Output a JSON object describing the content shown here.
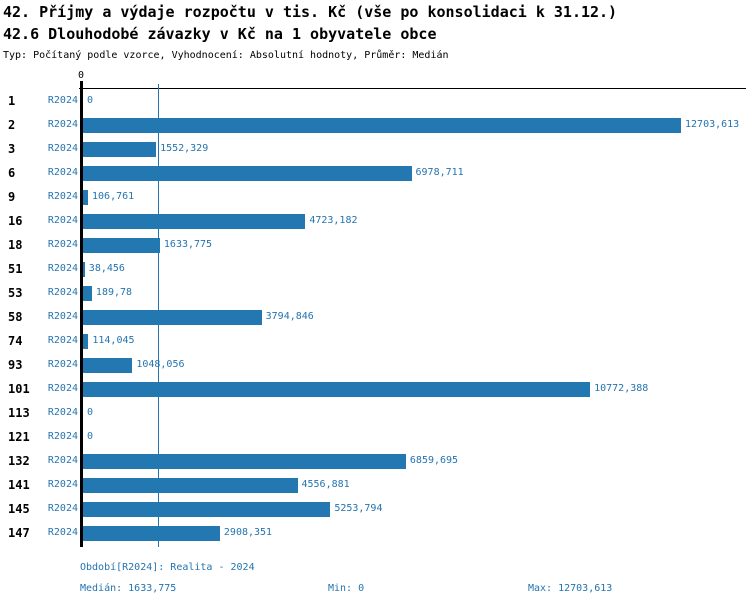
{
  "header": {
    "title": "42. Příjmy a výdaje rozpočtu v tis. Kč (vše po konsolidaci k 31.12.)",
    "subtitle": "42.6 Dlouhodobé závazky v Kč na 1 obyvatele obce",
    "meta": "Typ: Počítaný podle vzorce, Vyhodnocení: Absolutní hodnoty, Průměr: Medián"
  },
  "chart_data": {
    "type": "bar",
    "orientation": "horizontal",
    "title": "42. Příjmy a výdaje rozpočtu v tis. Kč (vše po konsolidaci k 31.12.)",
    "subtitle": "42.6 Dlouhodobé závazky v Kč na 1 obyvatele obce",
    "series_label": "R2024",
    "categories": [
      "1",
      "2",
      "3",
      "6",
      "9",
      "16",
      "18",
      "51",
      "53",
      "58",
      "74",
      "93",
      "101",
      "113",
      "121",
      "132",
      "141",
      "145",
      "147"
    ],
    "values": [
      0,
      12703.613,
      1552.329,
      6978.711,
      106.761,
      4723.182,
      1633.775,
      38.456,
      189.78,
      3794.846,
      114.045,
      1048.056,
      10772.388,
      0,
      0,
      6859.695,
      4556.881,
      5253.794,
      2908.351
    ],
    "value_labels": [
      "0",
      "12703,613",
      "1552,329",
      "6978,711",
      "106,761",
      "4723,182",
      "1633,775",
      "38,456",
      "189,78",
      "3794,846",
      "114,045",
      "1048,056",
      "10772,388",
      "0",
      "0",
      "6859,695",
      "4556,881",
      "5253,794",
      "2908,351"
    ],
    "zero_tick_label": "0",
    "xlim": [
      0,
      14084
    ],
    "grid": false,
    "median_value": 1633.775,
    "stats": {
      "median": 1633.775,
      "min": 0,
      "max": 12703.613
    },
    "colors": {
      "bar": "#2378b2",
      "blue": "#2474b0",
      "axis": "#000000"
    }
  },
  "footer": {
    "period_label": "Období[R2024]: Realita - 2024",
    "median_label": "Medián: 1633,775",
    "min_label": "Min: 0",
    "max_label": "Max: 12703,613"
  }
}
